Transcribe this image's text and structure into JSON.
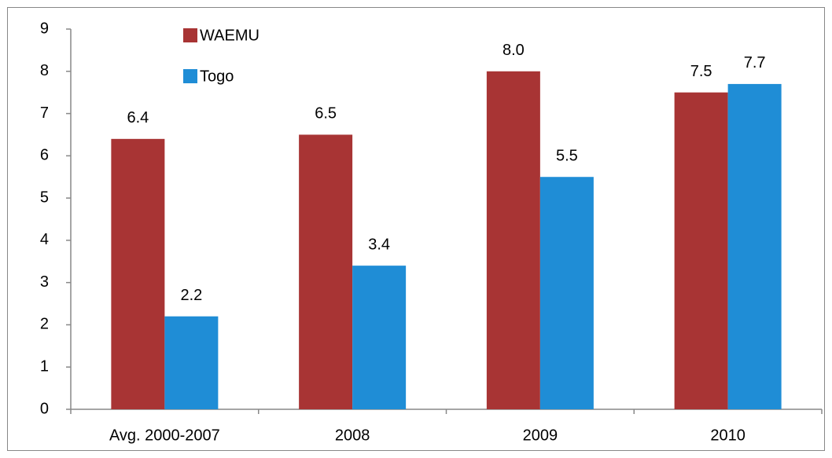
{
  "chart_data": {
    "type": "bar",
    "categories": [
      "Avg. 2000-2007",
      "2008",
      "2009",
      "2010"
    ],
    "series": [
      {
        "name": "WAEMU",
        "color": "#a83434",
        "values": [
          6.4,
          6.5,
          8.0,
          7.5
        ],
        "value_labels": [
          "6.4",
          "6.5",
          "8.0",
          "7.5"
        ]
      },
      {
        "name": "Togo",
        "color": "#1f8dd6",
        "values": [
          2.2,
          3.4,
          5.5,
          7.7
        ]
      }
    ],
    "ylim": [
      0,
      9
    ],
    "yticks": [
      0,
      1,
      2,
      3,
      4,
      5,
      6,
      7,
      8,
      9
    ],
    "legend": "upper left"
  }
}
